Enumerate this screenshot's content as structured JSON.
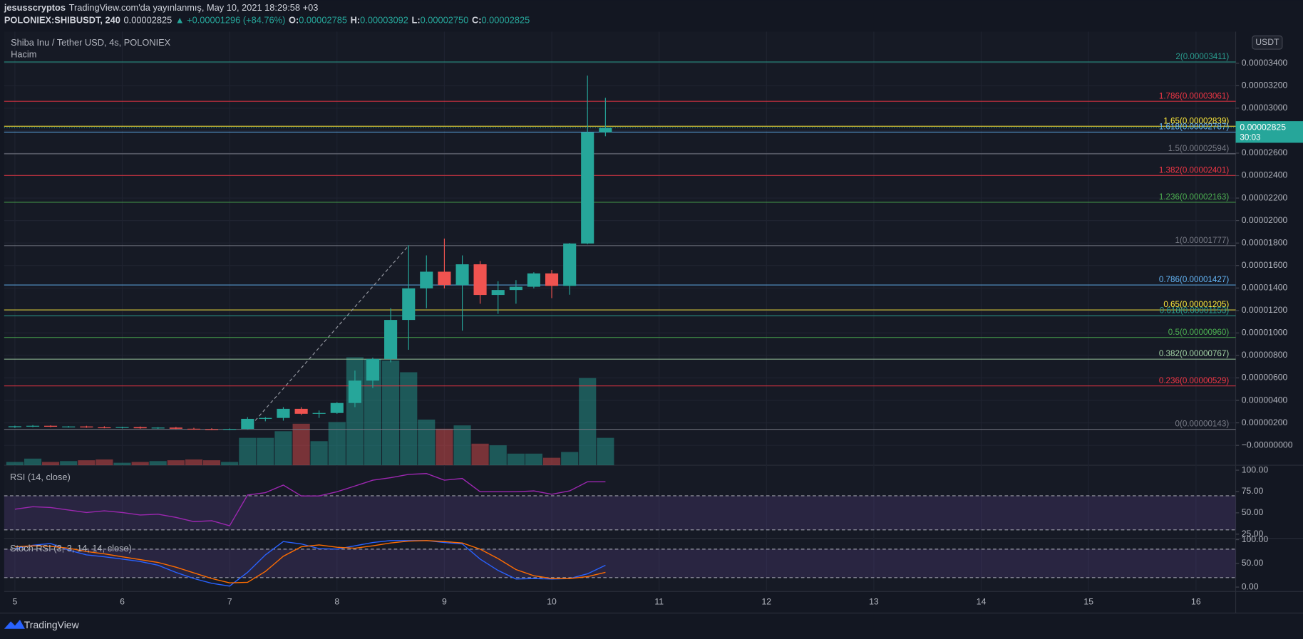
{
  "header": {
    "author": "jesusscryptos",
    "published": "TradingView.com'da yayınlanmış, May 10, 2021 18:29:58 +03",
    "symbol": "POLONIEX:SHIBUSDT, 240",
    "last": "0.00002825",
    "change": "▲ +0.00001296 (+84.76%)",
    "o_label": "O:",
    "o": "0.00002785",
    "h_label": "H:",
    "h": "0.00003092",
    "l_label": "L:",
    "l": "0.00002750",
    "c_label": "C:",
    "c": "0.00002825"
  },
  "chart_data": [
    {
      "type": "candlestick",
      "title": "Shiba Inu / Tether USD, 4s, POLONIEX",
      "x": [
        5,
        5.167,
        5.333,
        5.5,
        5.667,
        5.833,
        6,
        6.167,
        6.333,
        6.5,
        6.667,
        6.833,
        7,
        7.167,
        7.333,
        7.5,
        7.667,
        7.833,
        8,
        8.167,
        8.333,
        8.5,
        8.667,
        8.833,
        9,
        9.167,
        9.333,
        9.5,
        9.667,
        9.833,
        10,
        10.167,
        10.333,
        10.5
      ],
      "open": [
        1.62e-06,
        1.7e-06,
        1.74e-06,
        1.66e-06,
        1.68e-06,
        1.6e-06,
        1.58e-06,
        1.62e-06,
        1.52e-06,
        1.58e-06,
        1.48e-06,
        1.44e-06,
        1.4e-06,
        1.46e-06,
        2.36e-06,
        2.44e-06,
        3.25e-06,
        2.81e-06,
        2.88e-06,
        3.77e-06,
        5.76e-06,
        7.69e-06,
        1.116e-05,
        1.397e-05,
        1.545e-05,
        1.426e-05,
        1.611e-05,
        1.338e-05,
        1.382e-05,
        1.411e-05,
        1.53e-05,
        1.419e-05,
        1.796e-05,
        2.785e-05
      ],
      "high": [
        1.75e-06,
        1.8e-06,
        1.78e-06,
        1.72e-06,
        1.74e-06,
        1.7e-06,
        1.66e-06,
        1.68e-06,
        1.62e-06,
        1.64e-06,
        1.56e-06,
        1.52e-06,
        1.5e-06,
        2.51e-06,
        2.51e-06,
        3.4e-06,
        3.4e-06,
        3.1e-06,
        3.84e-06,
        6.65e-06,
        7.8e-06,
        1.22e-05,
        1.78e-05,
        1.69e-05,
        1.84e-05,
        1.69e-05,
        1.64e-05,
        1.46e-05,
        1.47e-05,
        1.54e-05,
        1.56e-05,
        1.8e-05,
        3.29e-05,
        3.092e-05
      ],
      "low": [
        1.55e-06,
        1.62e-06,
        1.62e-06,
        1.58e-06,
        1.56e-06,
        1.52e-06,
        1.5e-06,
        1.48e-06,
        1.46e-06,
        1.44e-06,
        1.4e-06,
        1.36e-06,
        1.36e-06,
        1.4e-06,
        2.14e-06,
        2.2e-06,
        2.7e-06,
        2.44e-06,
        2.81e-06,
        3.4e-06,
        5.1e-06,
        7.39e-06,
        8.5e-06,
        1.22e-05,
        1.397e-05,
        1.02e-05,
        1.26e-05,
        1.17e-05,
        1.26e-05,
        1.397e-05,
        1.31e-05,
        1.34e-05,
        1.79e-05,
        2.75e-05
      ],
      "close": [
        1.7e-06,
        1.74e-06,
        1.66e-06,
        1.68e-06,
        1.6e-06,
        1.58e-06,
        1.62e-06,
        1.52e-06,
        1.58e-06,
        1.48e-06,
        1.44e-06,
        1.4e-06,
        1.46e-06,
        2.36e-06,
        2.44e-06,
        3.25e-06,
        2.81e-06,
        2.88e-06,
        3.77e-06,
        5.76e-06,
        7.69e-06,
        1.116e-05,
        1.397e-05,
        1.545e-05,
        1.426e-05,
        1.611e-05,
        1.338e-05,
        1.382e-05,
        1.411e-05,
        1.53e-05,
        1.419e-05,
        1.796e-05,
        2.785e-05,
        2.825e-05
      ],
      "up_color": "#26a69a",
      "down_color": "#ef5350",
      "xlim": [
        4.9,
        16.37
      ],
      "xticks": [
        5,
        6,
        7,
        8,
        9,
        10,
        11,
        12,
        13,
        14,
        15,
        16
      ],
      "ylim": [
        -1.77e-06,
        3.68e-05
      ],
      "yticks": [
        {
          "value": 3.4e-05,
          "label": "0.00003400"
        },
        {
          "value": 3.2e-05,
          "label": "0.00003200"
        },
        {
          "value": 3e-05,
          "label": "0.00003000"
        },
        {
          "value": 2.8e-05,
          "label": "0.00002800"
        },
        {
          "value": 2.6e-05,
          "label": "0.00002600"
        },
        {
          "value": 2.4e-05,
          "label": "0.00002400"
        },
        {
          "value": 2.2e-05,
          "label": "0.00002200"
        },
        {
          "value": 2e-05,
          "label": "0.00002000"
        },
        {
          "value": 1.8e-05,
          "label": "0.00001800"
        },
        {
          "value": 1.6e-05,
          "label": "0.00001600"
        },
        {
          "value": 1.4e-05,
          "label": "0.00001400"
        },
        {
          "value": 1.2e-05,
          "label": "0.00001200"
        },
        {
          "value": 1e-05,
          "label": "0.00001000"
        },
        {
          "value": 8e-06,
          "label": "0.00000800"
        },
        {
          "value": 6e-06,
          "label": "0.00000600"
        },
        {
          "value": 4e-06,
          "label": "0.00000400"
        },
        {
          "value": 2e-06,
          "label": "0.00000200"
        },
        {
          "value": 0,
          "label": "−0.00000000"
        }
      ],
      "grid": true,
      "currency": "USDT",
      "price_label": {
        "value": 2.825e-05,
        "label": "0.00002825"
      },
      "countdown": "30:03",
      "price_color": "#26a69a",
      "fib_levels": [
        {
          "label": "2(0.00003411)",
          "value": 3.411e-05,
          "color": "#2a9d8f"
        },
        {
          "label": "1.786(0.00003061)",
          "value": 3.061e-05,
          "color": "#f23645"
        },
        {
          "label": "1.65(0.00002839)",
          "value": 2.839e-05,
          "color": "#ffeb3b"
        },
        {
          "label": "1.618(0.00002787)",
          "value": 2.787e-05,
          "color": "#64b5f6"
        },
        {
          "label": "1.5(0.00002594)",
          "value": 2.594e-05,
          "color": "#787b86"
        },
        {
          "label": "1.382(0.00002401)",
          "value": 2.401e-05,
          "color": "#f23645"
        },
        {
          "label": "1.236(0.00002163)",
          "value": 2.163e-05,
          "color": "#4caf50"
        },
        {
          "label": "1(0.00001777)",
          "value": 1.777e-05,
          "color": "#787b86"
        },
        {
          "label": "0.786(0.00001427)",
          "value": 1.427e-05,
          "color": "#64b5f6"
        },
        {
          "label": "0.65(0.00001205)",
          "value": 1.205e-05,
          "color": "#ffeb3b"
        },
        {
          "label": "0.618(0.00001153)",
          "value": 1.153e-05,
          "color": "#2a9d8f"
        },
        {
          "label": "0.5(0.00000960)",
          "value": 9.6e-06,
          "color": "#4caf50"
        },
        {
          "label": "0.382(0.00000767)",
          "value": 7.67e-06,
          "color": "#a5d6a7"
        },
        {
          "label": "0.236(0.00000529)",
          "value": 5.29e-06,
          "color": "#f23645"
        },
        {
          "label": "0(0.00000143)",
          "value": 1.43e-06,
          "color": "#787b86"
        }
      ],
      "fib_anchor": {
        "x": [
          7.167,
          8.667
        ],
        "y": [
          1.43e-06,
          1.777e-05
        ]
      }
    },
    {
      "type": "bar",
      "title": "Hacim",
      "values": [
        4,
        8,
        4,
        5,
        6,
        7,
        3,
        4,
        5,
        6,
        7,
        6,
        4,
        33,
        33,
        41,
        50,
        29,
        52,
        130,
        128,
        126,
        112,
        55,
        44,
        48,
        26,
        24,
        14,
        14,
        9,
        16,
        105,
        33
      ],
      "ylim": [
        0,
        160
      ]
    },
    {
      "type": "line",
      "title": "RSI (14, close)",
      "color": "#9c27b0",
      "values": [
        54.3,
        57.2,
        56.2,
        53.3,
        50.4,
        52.3,
        50.4,
        47.5,
        48.4,
        44.6,
        39.7,
        40.7,
        34.8,
        70.8,
        73.7,
        82.5,
        69.8,
        69.8,
        74.7,
        81.5,
        88.3,
        91.2,
        95.1,
        96.1,
        88.3,
        90.3,
        74.7,
        74.7,
        74.7,
        75.7,
        71.8,
        75.7,
        86.4,
        86.4
      ],
      "ylim": [
        20.1,
        105.8
      ],
      "yticks": [
        {
          "value": 100,
          "label": "100.00"
        },
        {
          "value": 75,
          "label": "75.00"
        },
        {
          "value": 50,
          "label": "50.00"
        },
        {
          "value": 25,
          "label": "25.00"
        }
      ],
      "band": [
        30,
        70
      ],
      "band_color": "#7e57c2"
    },
    {
      "type": "line",
      "title": "Stoch RSI (3, 3, 14, 14, close)",
      "series": [
        {
          "color": "#2962ff",
          "values": [
            81,
            88,
            92,
            78,
            68,
            64,
            59,
            54,
            46,
            31,
            18,
            8,
            2,
            31,
            68,
            96,
            91,
            81,
            80,
            87,
            94,
            98,
            98,
            98,
            94,
            91,
            59,
            35,
            17,
            18,
            17,
            18,
            28,
            46
          ]
        },
        {
          "color": "#ff6d00",
          "values": [
            85,
            87,
            86,
            82,
            75,
            70,
            64,
            58,
            52,
            42,
            30,
            18,
            9,
            10,
            33,
            65,
            85,
            89,
            84,
            82,
            87,
            93,
            97,
            98,
            96,
            93,
            80,
            60,
            37,
            24,
            18,
            18,
            22,
            31
          ]
        }
      ],
      "ylim": [
        -9.3,
        102.8
      ],
      "yticks": [
        {
          "value": 100,
          "label": "100.00"
        },
        {
          "value": 50,
          "label": "50.00"
        },
        {
          "value": 0,
          "label": "0.00"
        }
      ],
      "band": [
        20,
        80
      ],
      "band_color": "#7e57c2"
    }
  ],
  "footer": {
    "brand": "TradingView"
  }
}
